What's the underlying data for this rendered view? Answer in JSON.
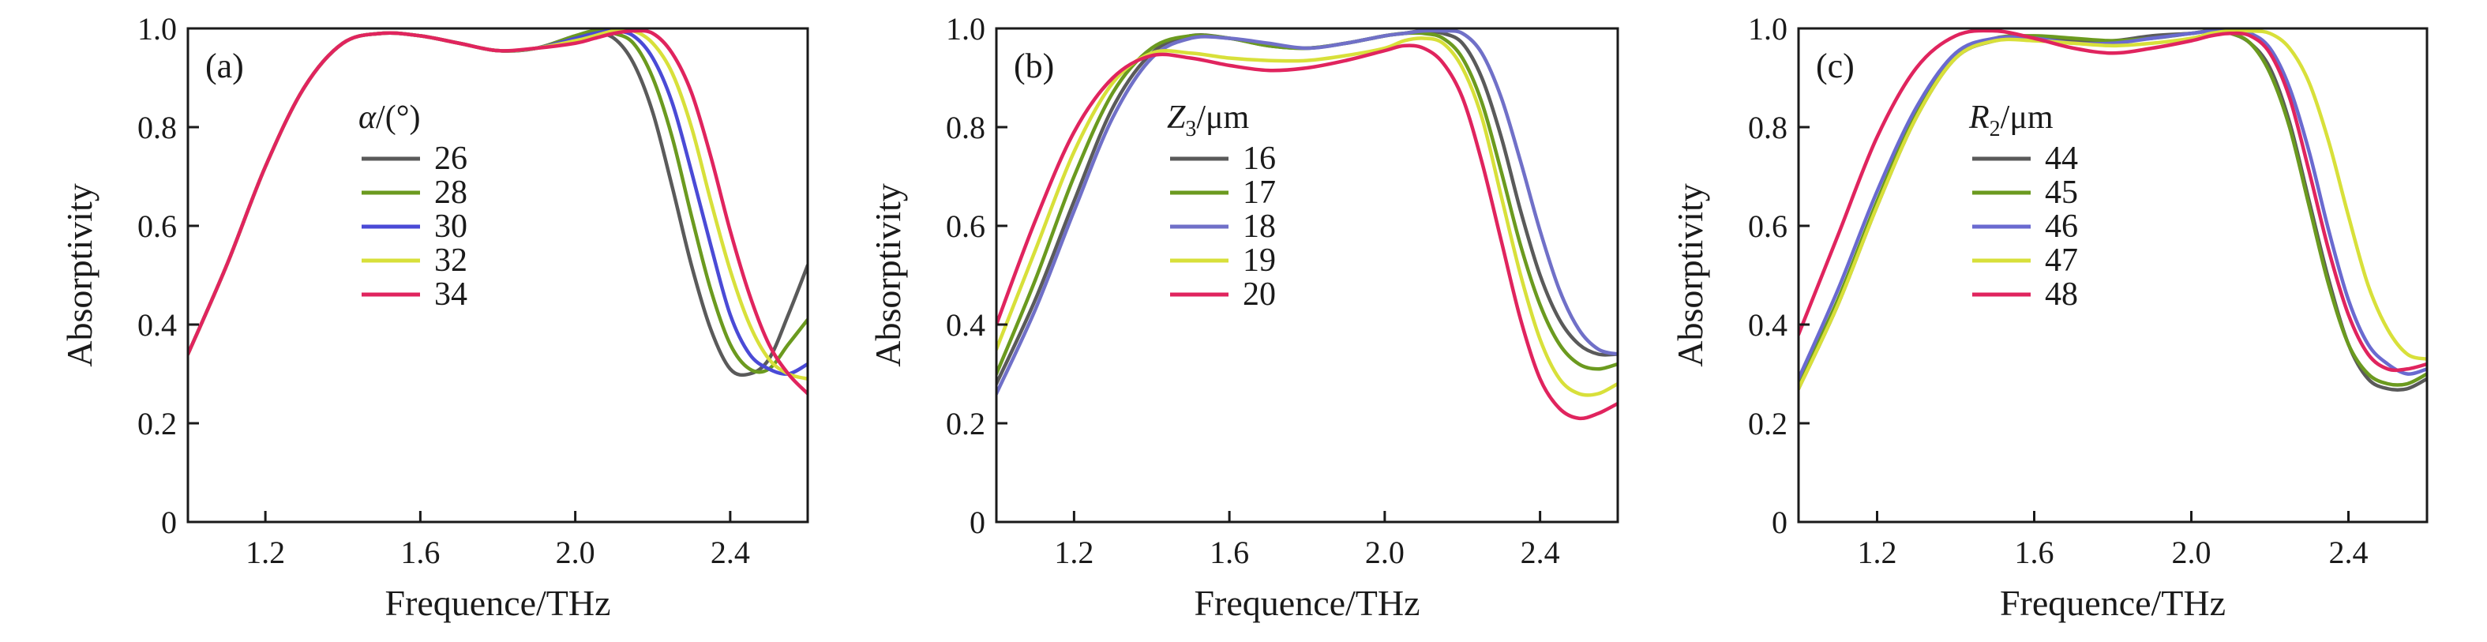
{
  "figure": {
    "panel_labels": [
      "(a)",
      "(b)",
      "(c)"
    ],
    "legend_titles": [
      {
        "italic": "α",
        "subscript": "",
        "rest": "/(°)"
      },
      {
        "italic": "Z",
        "subscript": "3",
        "rest": "/μm"
      },
      {
        "italic": "R",
        "subscript": "2",
        "rest": "/μm"
      }
    ]
  },
  "chart_data": [
    {
      "type": "line",
      "panel": "(a)",
      "xlabel": "Frequence/THz",
      "ylabel": "Absorptivity",
      "xlim": [
        1.0,
        2.6
      ],
      "ylim": [
        0,
        1.0
      ],
      "xticks": [
        1.2,
        1.6,
        2.0,
        2.4
      ],
      "xtick_labels": [
        "1.2",
        "1.6",
        "2.0",
        "2.4"
      ],
      "yticks": [
        0,
        0.2,
        0.4,
        0.6,
        0.8,
        1.0
      ],
      "ytick_labels": [
        "0",
        "0.2",
        "0.4",
        "0.6",
        "0.8",
        "1.0"
      ],
      "grid": false,
      "legend_title": "α/(°)",
      "legend_position": "upper-left",
      "x": [
        1.0,
        1.1,
        1.2,
        1.3,
        1.4,
        1.5,
        1.6,
        1.7,
        1.8,
        1.9,
        2.0,
        2.05,
        2.1,
        2.15,
        2.2,
        2.25,
        2.3,
        2.35,
        2.4,
        2.45,
        2.5,
        2.55,
        2.6
      ],
      "series": [
        {
          "name": "26",
          "color": "#5a5a5a",
          "values": [
            0.34,
            0.52,
            0.72,
            0.88,
            0.97,
            0.99,
            0.985,
            0.97,
            0.955,
            0.96,
            0.985,
            0.99,
            0.98,
            0.93,
            0.83,
            0.68,
            0.52,
            0.39,
            0.31,
            0.3,
            0.33,
            0.42,
            0.52
          ]
        },
        {
          "name": "28",
          "color": "#6b9a1f",
          "values": [
            0.34,
            0.52,
            0.72,
            0.88,
            0.97,
            0.99,
            0.985,
            0.97,
            0.955,
            0.96,
            0.985,
            0.995,
            0.99,
            0.97,
            0.9,
            0.78,
            0.62,
            0.47,
            0.36,
            0.31,
            0.31,
            0.36,
            0.41
          ]
        },
        {
          "name": "30",
          "color": "#4a4ad6",
          "values": [
            0.34,
            0.52,
            0.72,
            0.88,
            0.97,
            0.99,
            0.985,
            0.97,
            0.955,
            0.96,
            0.98,
            0.99,
            0.995,
            0.985,
            0.94,
            0.85,
            0.71,
            0.56,
            0.42,
            0.34,
            0.31,
            0.3,
            0.32
          ]
        },
        {
          "name": "32",
          "color": "#d8e03a",
          "values": [
            0.34,
            0.52,
            0.72,
            0.88,
            0.97,
            0.99,
            0.985,
            0.97,
            0.955,
            0.96,
            0.975,
            0.985,
            0.995,
            0.995,
            0.97,
            0.91,
            0.8,
            0.65,
            0.51,
            0.4,
            0.33,
            0.3,
            0.29
          ]
        },
        {
          "name": "34",
          "color": "#e0245e",
          "values": [
            0.34,
            0.52,
            0.72,
            0.88,
            0.97,
            0.99,
            0.985,
            0.97,
            0.955,
            0.96,
            0.97,
            0.98,
            0.99,
            0.995,
            0.99,
            0.95,
            0.87,
            0.74,
            0.59,
            0.46,
            0.36,
            0.3,
            0.26
          ]
        }
      ]
    },
    {
      "type": "line",
      "panel": "(b)",
      "xlabel": "Frequence/THz",
      "ylabel": "Absorptivity",
      "xlim": [
        1.0,
        2.6
      ],
      "ylim": [
        0,
        1.0
      ],
      "xticks": [
        1.2,
        1.6,
        2.0,
        2.4
      ],
      "xtick_labels": [
        "1.2",
        "1.6",
        "2.0",
        "2.4"
      ],
      "yticks": [
        0,
        0.2,
        0.4,
        0.6,
        0.8,
        1.0
      ],
      "ytick_labels": [
        "0",
        "0.2",
        "0.4",
        "0.6",
        "0.8",
        "1.0"
      ],
      "grid": false,
      "legend_title": "Z3/μm",
      "legend_position": "upper-left",
      "x": [
        1.0,
        1.1,
        1.2,
        1.3,
        1.4,
        1.5,
        1.6,
        1.7,
        1.8,
        1.9,
        2.0,
        2.05,
        2.1,
        2.15,
        2.2,
        2.25,
        2.3,
        2.35,
        2.4,
        2.45,
        2.5,
        2.55,
        2.6
      ],
      "series": [
        {
          "name": "16",
          "color": "#5a5a5a",
          "values": [
            0.28,
            0.45,
            0.65,
            0.84,
            0.95,
            0.985,
            0.98,
            0.965,
            0.96,
            0.97,
            0.985,
            0.99,
            0.995,
            0.99,
            0.97,
            0.9,
            0.78,
            0.63,
            0.5,
            0.41,
            0.36,
            0.34,
            0.34
          ]
        },
        {
          "name": "17",
          "color": "#6b9a1f",
          "values": [
            0.3,
            0.49,
            0.7,
            0.87,
            0.96,
            0.985,
            0.98,
            0.965,
            0.96,
            0.97,
            0.985,
            0.99,
            0.99,
            0.98,
            0.94,
            0.85,
            0.71,
            0.56,
            0.44,
            0.36,
            0.32,
            0.31,
            0.32
          ]
        },
        {
          "name": "18",
          "color": "#7070c8",
          "values": [
            0.26,
            0.43,
            0.63,
            0.82,
            0.94,
            0.98,
            0.98,
            0.97,
            0.96,
            0.97,
            0.985,
            0.99,
            0.995,
            0.995,
            0.99,
            0.95,
            0.86,
            0.73,
            0.59,
            0.47,
            0.39,
            0.35,
            0.34
          ]
        },
        {
          "name": "19",
          "color": "#d8e03a",
          "values": [
            0.35,
            0.55,
            0.75,
            0.89,
            0.95,
            0.95,
            0.94,
            0.935,
            0.935,
            0.945,
            0.96,
            0.975,
            0.98,
            0.97,
            0.92,
            0.82,
            0.66,
            0.5,
            0.37,
            0.29,
            0.26,
            0.26,
            0.28
          ]
        },
        {
          "name": "20",
          "color": "#e0245e",
          "values": [
            0.4,
            0.61,
            0.79,
            0.9,
            0.945,
            0.94,
            0.925,
            0.915,
            0.92,
            0.935,
            0.955,
            0.965,
            0.96,
            0.93,
            0.86,
            0.73,
            0.57,
            0.41,
            0.29,
            0.23,
            0.21,
            0.22,
            0.24
          ]
        }
      ]
    },
    {
      "type": "line",
      "panel": "(c)",
      "xlabel": "Frequence/THz",
      "ylabel": "Absorptivity",
      "xlim": [
        1.0,
        2.6
      ],
      "ylim": [
        0,
        1.0
      ],
      "xticks": [
        1.2,
        1.6,
        2.0,
        2.4
      ],
      "xtick_labels": [
        "1.2",
        "1.6",
        "2.0",
        "2.4"
      ],
      "yticks": [
        0,
        0.2,
        0.4,
        0.6,
        0.8,
        1.0
      ],
      "ytick_labels": [
        "0",
        "0.2",
        "0.4",
        "0.6",
        "0.8",
        "1.0"
      ],
      "grid": false,
      "legend_title": "R2/μm",
      "legend_position": "upper-left",
      "x": [
        1.0,
        1.1,
        1.2,
        1.3,
        1.4,
        1.5,
        1.6,
        1.7,
        1.8,
        1.9,
        2.0,
        2.05,
        2.1,
        2.15,
        2.2,
        2.25,
        2.3,
        2.35,
        2.4,
        2.45,
        2.5,
        2.55,
        2.6
      ],
      "series": [
        {
          "name": "44",
          "color": "#5a5a5a",
          "values": [
            0.27,
            0.44,
            0.64,
            0.82,
            0.94,
            0.975,
            0.98,
            0.975,
            0.975,
            0.985,
            0.99,
            0.995,
            0.99,
            0.97,
            0.92,
            0.81,
            0.65,
            0.49,
            0.36,
            0.29,
            0.27,
            0.27,
            0.29
          ]
        },
        {
          "name": "45",
          "color": "#6b9a1f",
          "values": [
            0.28,
            0.45,
            0.65,
            0.83,
            0.945,
            0.98,
            0.985,
            0.98,
            0.975,
            0.98,
            0.99,
            0.995,
            0.99,
            0.97,
            0.91,
            0.8,
            0.64,
            0.48,
            0.36,
            0.3,
            0.28,
            0.28,
            0.3
          ]
        },
        {
          "name": "46",
          "color": "#6a6ad0",
          "values": [
            0.29,
            0.47,
            0.67,
            0.84,
            0.95,
            0.98,
            0.98,
            0.97,
            0.97,
            0.98,
            0.99,
            0.995,
            0.995,
            0.99,
            0.96,
            0.88,
            0.75,
            0.59,
            0.45,
            0.36,
            0.32,
            0.3,
            0.31
          ]
        },
        {
          "name": "47",
          "color": "#d8e03a",
          "values": [
            0.27,
            0.44,
            0.64,
            0.82,
            0.94,
            0.975,
            0.975,
            0.97,
            0.965,
            0.97,
            0.98,
            0.99,
            0.995,
            0.995,
            0.99,
            0.96,
            0.89,
            0.77,
            0.62,
            0.48,
            0.39,
            0.34,
            0.33
          ]
        },
        {
          "name": "48",
          "color": "#e0245e",
          "values": [
            0.38,
            0.58,
            0.78,
            0.92,
            0.985,
            0.995,
            0.98,
            0.96,
            0.95,
            0.96,
            0.975,
            0.985,
            0.99,
            0.985,
            0.95,
            0.86,
            0.71,
            0.55,
            0.42,
            0.34,
            0.31,
            0.31,
            0.32
          ]
        }
      ]
    }
  ]
}
